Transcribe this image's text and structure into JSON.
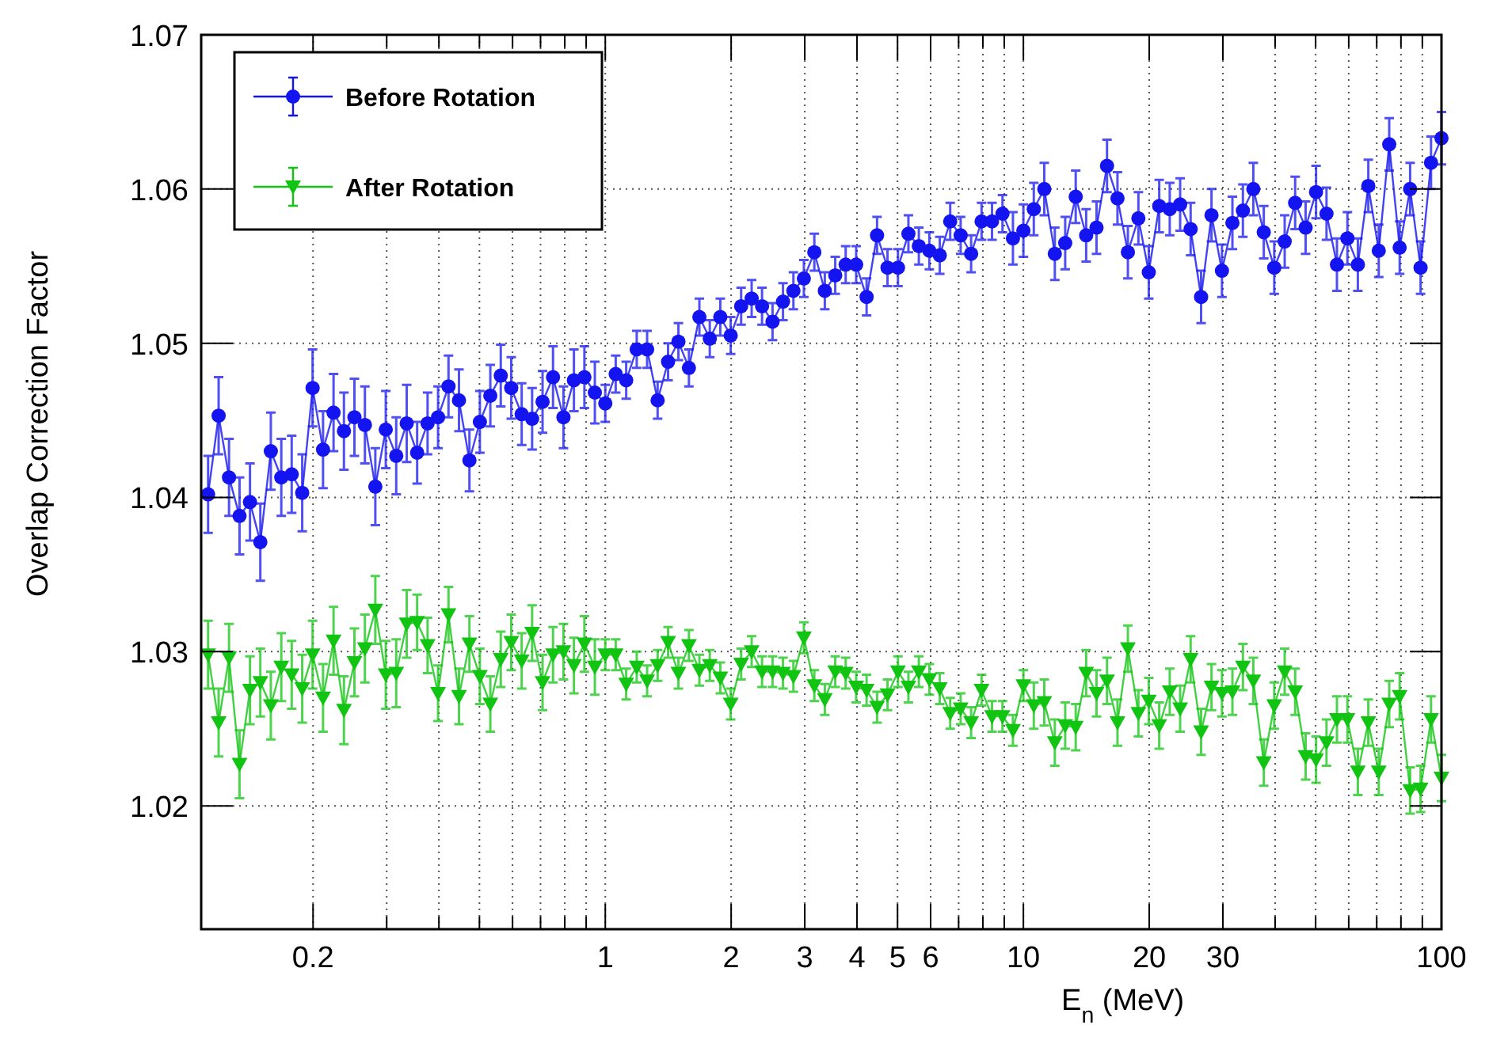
{
  "chart_data": {
    "type": "line",
    "xlabel": "E$_{n}$ (MeV)",
    "ylabel": "Overlap Correction Factor",
    "log": "x",
    "grid": true,
    "legend": "top left",
    "line_style": "solid",
    "xlim": [
      0.108,
      100
    ],
    "ylim": [
      1.012,
      1.07
    ],
    "xticks": [
      {
        "value": 0.2,
        "label": "0.2"
      },
      {
        "value": 0.3,
        "label": null
      },
      {
        "value": 0.4,
        "label": null
      },
      {
        "value": 0.5,
        "label": null
      },
      {
        "value": 0.6,
        "label": null
      },
      {
        "value": 0.7,
        "label": null
      },
      {
        "value": 0.8,
        "label": null
      },
      {
        "value": 0.9,
        "label": null
      },
      1,
      2,
      3,
      4,
      5,
      6,
      {
        "value": 7,
        "label": null
      },
      {
        "value": 8,
        "label": null
      },
      {
        "value": 9,
        "label": null
      },
      10,
      20,
      30,
      {
        "value": 40,
        "label": null
      },
      {
        "value": 50,
        "label": null
      },
      {
        "value": 60,
        "label": null
      },
      {
        "value": 70,
        "label": null
      },
      {
        "value": 80,
        "label": null
      },
      {
        "value": 90,
        "label": null
      },
      100
    ],
    "yticks": [
      {
        "value": 1.02,
        "label": "1.02"
      },
      {
        "value": 1.03,
        "label": "1.03"
      },
      {
        "value": 1.04,
        "label": "1.04"
      },
      {
        "value": 1.05,
        "label": "1.05"
      },
      {
        "value": 1.06,
        "label": "1.06"
      },
      {
        "value": 1.07,
        "label": "1.07"
      }
    ],
    "x": [
      0.1122,
      0.1189,
      0.1259,
      0.1334,
      0.1413,
      0.1496,
      0.1585,
      0.1679,
      0.1778,
      0.1884,
      0.1995,
      0.2113,
      0.2239,
      0.2371,
      0.2512,
      0.2661,
      0.2818,
      0.2985,
      0.3162,
      0.335,
      0.3548,
      0.3758,
      0.3981,
      0.4217,
      0.4467,
      0.4732,
      0.5012,
      0.5309,
      0.5623,
      0.5957,
      0.631,
      0.6683,
      0.7079,
      0.7499,
      0.7943,
      0.8414,
      0.8913,
      0.9441,
      1,
      1.059,
      1.122,
      1.189,
      1.259,
      1.334,
      1.413,
      1.496,
      1.585,
      1.679,
      1.778,
      1.884,
      1.995,
      2.113,
      2.239,
      2.371,
      2.512,
      2.661,
      2.818,
      2.985,
      3.162,
      3.35,
      3.548,
      3.758,
      3.981,
      4.217,
      4.467,
      4.732,
      5.012,
      5.309,
      5.623,
      5.957,
      6.31,
      6.683,
      7.079,
      7.499,
      7.943,
      8.414,
      8.913,
      9.441,
      10,
      10.59,
      11.22,
      11.89,
      12.59,
      13.34,
      14.13,
      14.96,
      15.85,
      16.79,
      17.78,
      18.84,
      19.95,
      21.13,
      22.39,
      23.71,
      25.12,
      26.61,
      28.18,
      29.85,
      31.62,
      33.5,
      35.48,
      37.58,
      39.81,
      42.17,
      44.67,
      47.32,
      50.12,
      53.09,
      56.23,
      59.57,
      63.1,
      66.83,
      70.79,
      74.99,
      79.43,
      84.14,
      89.13,
      94.41,
      100
    ],
    "series": [
      {
        "name": "Before Rotation",
        "color": "#1414f0",
        "marker": "circle",
        "values": [
          1.0402,
          1.0453,
          1.0413,
          1.0388,
          1.0397,
          1.0371,
          1.043,
          1.0413,
          1.0415,
          1.0403,
          1.0471,
          1.0431,
          1.0455,
          1.0443,
          1.0452,
          1.0447,
          1.0407,
          1.0444,
          1.0427,
          1.0448,
          1.0429,
          1.0448,
          1.0452,
          1.0472,
          1.0463,
          1.0424,
          1.0449,
          1.0466,
          1.0479,
          1.0471,
          1.0454,
          1.0451,
          1.0462,
          1.0478,
          1.0452,
          1.0476,
          1.0478,
          1.0468,
          1.0461,
          1.048,
          1.0476,
          1.0496,
          1.0496,
          1.0463,
          1.0488,
          1.0501,
          1.0484,
          1.0517,
          1.0503,
          1.0517,
          1.0505,
          1.0524,
          1.0529,
          1.0524,
          1.0514,
          1.0527,
          1.0534,
          1.0542,
          1.0559,
          1.0534,
          1.0544,
          1.0551,
          1.0551,
          1.053,
          1.057,
          1.0549,
          1.0549,
          1.0571,
          1.0563,
          1.056,
          1.0557,
          1.0579,
          1.057,
          1.0558,
          1.0579,
          1.0579,
          1.0584,
          1.0568,
          1.0573,
          1.0587,
          1.06,
          1.0558,
          1.0565,
          1.0595,
          1.057,
          1.0575,
          1.0615,
          1.0594,
          1.0559,
          1.0581,
          1.0546,
          1.0589,
          1.0587,
          1.059,
          1.0574,
          1.053,
          1.0583,
          1.0547,
          1.0578,
          1.0586,
          1.06,
          1.0572,
          1.0549,
          1.0566,
          1.0591,
          1.0575,
          1.0598,
          1.0584,
          1.0551,
          1.0568,
          1.0551,
          1.0602,
          1.056,
          1.0629,
          1.0562,
          1.06,
          1.0549,
          1.0617,
          1.0633
        ],
        "errors": [
          0.0025,
          0.0025,
          0.0025,
          0.0025,
          0.0025,
          0.0025,
          0.0025,
          0.0025,
          0.0025,
          0.0025,
          0.0025,
          0.0025,
          0.0025,
          0.0025,
          0.0025,
          0.0025,
          0.0025,
          0.0025,
          0.0025,
          0.0025,
          0.002,
          0.002,
          0.002,
          0.002,
          0.002,
          0.002,
          0.002,
          0.002,
          0.002,
          0.002,
          0.002,
          0.002,
          0.002,
          0.002,
          0.002,
          0.002,
          0.002,
          0.002,
          0.0012,
          0.0012,
          0.0012,
          0.0012,
          0.0012,
          0.0012,
          0.0012,
          0.0012,
          0.0012,
          0.0012,
          0.0012,
          0.0012,
          0.0012,
          0.0012,
          0.0012,
          0.0012,
          0.0012,
          0.0012,
          0.0012,
          0.0012,
          0.0012,
          0.0012,
          0.0012,
          0.0012,
          0.0012,
          0.0012,
          0.0012,
          0.0012,
          0.0012,
          0.0012,
          0.0012,
          0.0012,
          0.0012,
          0.0012,
          0.0012,
          0.0012,
          0.0012,
          0.0012,
          0.0012,
          0.0017,
          0.0017,
          0.0017,
          0.0017,
          0.0017,
          0.0017,
          0.0017,
          0.0017,
          0.0017,
          0.0017,
          0.0017,
          0.0017,
          0.0017,
          0.0017,
          0.0017,
          0.0017,
          0.0017,
          0.0017,
          0.0017,
          0.0017,
          0.0017,
          0.0017,
          0.0017,
          0.0017,
          0.0017,
          0.0017,
          0.0017,
          0.0017,
          0.0017,
          0.0017,
          0.0017,
          0.0017,
          0.0017,
          0.0017,
          0.0017,
          0.0017,
          0.0017,
          0.0017,
          0.0017,
          0.0017,
          0.0017,
          0.0017
        ]
      },
      {
        "name": "After Rotation",
        "color": "#12c412",
        "marker": "triangle",
        "values": [
          1.0298,
          1.0254,
          1.0296,
          1.0227,
          1.0275,
          1.028,
          1.0265,
          1.029,
          1.0285,
          1.0276,
          1.0298,
          1.027,
          1.0307,
          1.0262,
          1.0293,
          1.0302,
          1.0327,
          1.0285,
          1.0286,
          1.0318,
          1.0319,
          1.0304,
          1.0273,
          1.0324,
          1.0271,
          1.0305,
          1.0284,
          1.0266,
          1.0295,
          1.0306,
          1.0294,
          1.0312,
          1.028,
          1.0298,
          1.03,
          1.0291,
          1.0305,
          1.029,
          1.0298,
          1.0298,
          1.0279,
          1.029,
          1.0281,
          1.0291,
          1.0306,
          1.0286,
          1.0304,
          1.0288,
          1.0291,
          1.0283,
          1.0266,
          1.0292,
          1.03,
          1.0287,
          1.0287,
          1.0286,
          1.0284,
          1.0309,
          1.0278,
          1.0269,
          1.0287,
          1.0286,
          1.0277,
          1.0275,
          1.0264,
          1.0272,
          1.0287,
          1.0277,
          1.0287,
          1.0282,
          1.0276,
          1.026,
          1.0263,
          1.0254,
          1.0275,
          1.0258,
          1.0258,
          1.0249,
          1.0278,
          1.0265,
          1.0267,
          1.0241,
          1.0252,
          1.0251,
          1.0286,
          1.0273,
          1.0281,
          1.0254,
          1.0302,
          1.026,
          1.0268,
          1.0252,
          1.0274,
          1.0263,
          1.0295,
          1.0248,
          1.0277,
          1.0273,
          1.0274,
          1.029,
          1.0281,
          1.0228,
          1.0265,
          1.0287,
          1.0274,
          1.0232,
          1.023,
          1.0241,
          1.0256,
          1.0256,
          1.0222,
          1.0254,
          1.0222,
          1.0266,
          1.0271,
          1.021,
          1.0211,
          1.0256,
          1.0218
        ],
        "errors": [
          0.0022,
          0.0022,
          0.0022,
          0.0022,
          0.0022,
          0.0022,
          0.0022,
          0.0022,
          0.0022,
          0.0022,
          0.0022,
          0.0022,
          0.0022,
          0.0022,
          0.0022,
          0.0022,
          0.0022,
          0.0022,
          0.0022,
          0.0022,
          0.0018,
          0.0018,
          0.0018,
          0.0018,
          0.0018,
          0.0018,
          0.0018,
          0.0018,
          0.0018,
          0.0018,
          0.0018,
          0.0018,
          0.0018,
          0.0018,
          0.0018,
          0.0018,
          0.0018,
          0.0018,
          0.001,
          0.001,
          0.001,
          0.001,
          0.001,
          0.001,
          0.001,
          0.001,
          0.001,
          0.001,
          0.001,
          0.001,
          0.001,
          0.001,
          0.001,
          0.001,
          0.001,
          0.001,
          0.001,
          0.001,
          0.001,
          0.001,
          0.001,
          0.001,
          0.001,
          0.001,
          0.001,
          0.001,
          0.001,
          0.001,
          0.001,
          0.001,
          0.001,
          0.001,
          0.001,
          0.001,
          0.001,
          0.001,
          0.001,
          0.001,
          0.001,
          0.0015,
          0.0015,
          0.0015,
          0.0015,
          0.0015,
          0.0015,
          0.0015,
          0.0015,
          0.0015,
          0.0015,
          0.0015,
          0.0015,
          0.0015,
          0.0015,
          0.0015,
          0.0015,
          0.0015,
          0.0015,
          0.0015,
          0.0015,
          0.0015,
          0.0015,
          0.0015,
          0.0015,
          0.0015,
          0.0015,
          0.0015,
          0.0015,
          0.0015,
          0.0015,
          0.0015,
          0.0015,
          0.0015,
          0.0015,
          0.0015,
          0.0015,
          0.0015,
          0.0015,
          0.0015,
          0.0015
        ]
      }
    ]
  }
}
